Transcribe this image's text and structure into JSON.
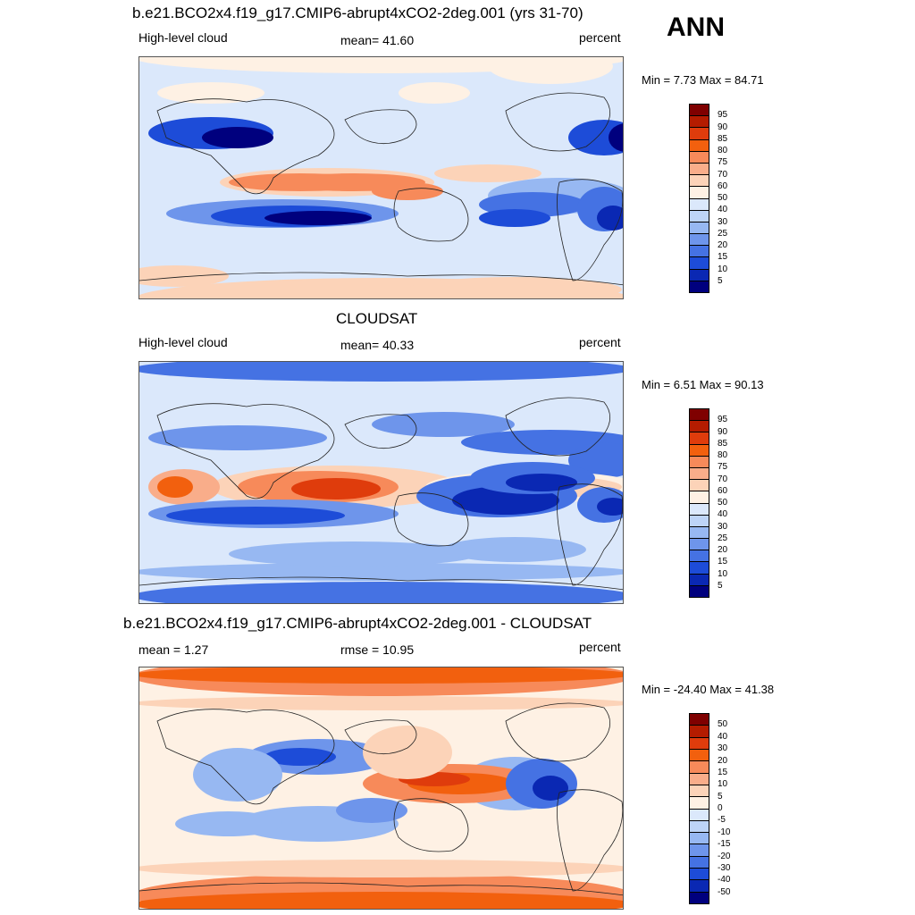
{
  "season": "ANN",
  "panels": [
    {
      "title": "b.e21.BCO2x4.f19_g17.CMIP6-abrupt4xCO2-2deg.001 (yrs 31-70)",
      "left_label": "High-level cloud",
      "center_label": "mean=  41.60",
      "units": "percent",
      "minmax": "Min =   7.73 Max =  84.71",
      "colorbar_labels": [
        "95",
        "90",
        "85",
        "80",
        "75",
        "70",
        "60",
        "50",
        "40",
        "30",
        "25",
        "20",
        "15",
        "10",
        "5"
      ]
    },
    {
      "title": "CLOUDSAT",
      "left_label": "High-level cloud",
      "center_label": "mean=  40.33",
      "units": "percent",
      "minmax": "Min =   6.51 Max =  90.13",
      "colorbar_labels": [
        "95",
        "90",
        "85",
        "80",
        "75",
        "70",
        "60",
        "50",
        "40",
        "30",
        "25",
        "20",
        "15",
        "10",
        "5"
      ]
    },
    {
      "title": "b.e21.BCO2x4.f19_g17.CMIP6-abrupt4xCO2-2deg.001 - CLOUDSAT",
      "left_label": "mean =   1.27",
      "center_label": "rmse =  10.95",
      "units": "percent",
      "minmax": "Min = -24.40 Max =  41.38",
      "colorbar_labels": [
        "50",
        "40",
        "30",
        "20",
        "15",
        "10",
        "5",
        "0",
        "-5",
        "-10",
        "-15",
        "-20",
        "-30",
        "-40",
        "-50"
      ]
    }
  ],
  "colors": {
    "scale": [
      "#7f0000",
      "#b41c00",
      "#df3c0c",
      "#f2600e",
      "#f78a5a",
      "#f9ad8a",
      "#fcd3b8",
      "#fef1e4",
      "#dbe8fb",
      "#bdd4f7",
      "#97b8f2",
      "#6e95eb",
      "#4572e3",
      "#1d4cd8",
      "#0a28b3",
      "#00007e"
    ]
  }
}
